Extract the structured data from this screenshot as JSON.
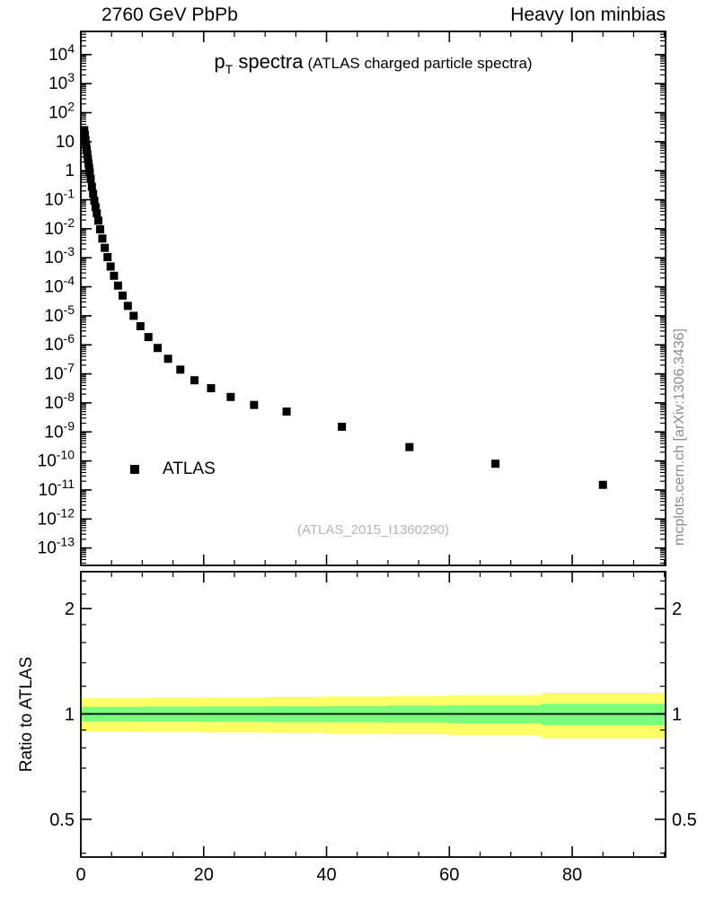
{
  "header": {
    "left": "2760 GeV PbPb",
    "right": "Heavy Ion minbias"
  },
  "side_label": "mcplots.cern.ch [arXiv:1306.3436]",
  "colors": {
    "band_outer": "#ffff66",
    "band_inner": "#7dff7d",
    "marker": "#000000",
    "frame": "#000000",
    "watermark": "#b5b5b5",
    "side_label": "#8c8c8c"
  },
  "chart_data": [
    {
      "type": "scatter",
      "title": "pT spectra (ATLAS charged particle spectra)",
      "title_parts": {
        "p": "p",
        "sub": "T",
        "rest": " spectra",
        "paren": "(ATLAS charged particle spectra)"
      },
      "watermark": "(ATLAS_2015_I1360290)",
      "xlabel": "",
      "ylabel": "",
      "x_range": [
        0,
        95.2
      ],
      "y_log_range": [
        -13.6,
        4.8
      ],
      "y_tick_exponents": [
        4,
        3,
        2,
        1,
        0,
        -1,
        -2,
        -3,
        -4,
        -5,
        -6,
        -7,
        -8,
        -9,
        -10,
        -11,
        -12,
        -13
      ],
      "x_major_ticks": [
        0,
        20,
        40,
        60,
        80
      ],
      "x_minor_step": 5,
      "grid": false,
      "legend_position": "left-middle",
      "series": [
        {
          "name": "ATLAS",
          "marker": "square",
          "color": "#000000",
          "points": [
            [
              0.55,
              25
            ],
            [
              0.65,
              17
            ],
            [
              0.75,
              11.5
            ],
            [
              0.85,
              7.8
            ],
            [
              0.95,
              5.3
            ],
            [
              1.05,
              3.7
            ],
            [
              1.15,
              2.55
            ],
            [
              1.25,
              1.8
            ],
            [
              1.35,
              1.25
            ],
            [
              1.45,
              0.88
            ],
            [
              1.6,
              0.52
            ],
            [
              1.8,
              0.28
            ],
            [
              2.0,
              0.16
            ],
            [
              2.2,
              0.092
            ],
            [
              2.4,
              0.055
            ],
            [
              2.6,
              0.034
            ],
            [
              2.85,
              0.019
            ],
            [
              3.15,
              0.0095
            ],
            [
              3.5,
              0.0046
            ],
            [
              3.9,
              0.0022
            ],
            [
              4.35,
              0.00105
            ],
            [
              4.85,
              0.0005
            ],
            [
              5.4,
              0.00024
            ],
            [
              6.05,
              0.00011
            ],
            [
              6.8,
              5e-05
            ],
            [
              7.65,
              2.2e-05
            ],
            [
              8.6,
              1e-05
            ],
            [
              9.7,
              4.4e-06
            ],
            [
              11.0,
              1.85e-06
            ],
            [
              12.5,
              7.8e-07
            ],
            [
              14.2,
              3.3e-07
            ],
            [
              16.2,
              1.4e-07
            ],
            [
              18.5,
              6e-08
            ],
            [
              21.2,
              3.2e-08
            ],
            [
              24.4,
              1.6e-08
            ],
            [
              28.2,
              8.5e-09
            ],
            [
              33.5,
              5e-09
            ],
            [
              42.5,
              1.5e-09
            ],
            [
              53.5,
              3e-10
            ],
            [
              67.5,
              8e-11
            ],
            [
              85.0,
              1.5e-11
            ]
          ]
        }
      ]
    },
    {
      "type": "band-ratio",
      "ylabel": "Ratio to ATLAS",
      "x_range": [
        0,
        95.2
      ],
      "y_range": [
        0.39,
        2.55
      ],
      "y_scale": "log",
      "y_major_ticks": [
        0.5,
        1,
        2
      ],
      "y_minor_ticks": [
        0.4,
        0.6,
        0.7,
        0.8,
        0.9,
        1.2,
        1.4,
        1.6,
        1.8,
        2.2,
        2.4
      ],
      "x_major_ticks": [
        0,
        20,
        40,
        60,
        80
      ],
      "x_minor_step": 5,
      "reference_line": 1,
      "bands": [
        {
          "name": "outer-uncertainty",
          "color_key": "band_outer",
          "edges": [
            0,
            10,
            20,
            30,
            40,
            50,
            60,
            75,
            95.2
          ],
          "lo": [
            0.89,
            0.888,
            0.885,
            0.882,
            0.878,
            0.875,
            0.868,
            0.852
          ],
          "hi": [
            1.11,
            1.112,
            1.115,
            1.118,
            1.122,
            1.125,
            1.132,
            1.148
          ]
        },
        {
          "name": "inner-uncertainty",
          "color_key": "band_inner",
          "edges": [
            0,
            10,
            20,
            30,
            40,
            50,
            60,
            75,
            95.2
          ],
          "lo": [
            0.952,
            0.951,
            0.95,
            0.948,
            0.946,
            0.944,
            0.94,
            0.93
          ],
          "hi": [
            1.048,
            1.049,
            1.05,
            1.052,
            1.054,
            1.056,
            1.06,
            1.07
          ]
        }
      ]
    }
  ]
}
